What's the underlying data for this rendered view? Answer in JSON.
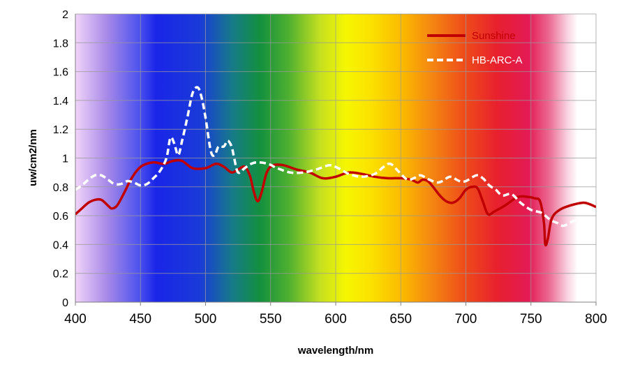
{
  "chart_data": {
    "type": "line",
    "title": "",
    "xlabel": "wavelength/nm",
    "ylabel": "uw/cm2/nm",
    "xlim": [
      400,
      800
    ],
    "ylim": [
      0,
      2
    ],
    "x_ticks": [
      "400",
      "450",
      "500",
      "550",
      "600",
      "650",
      "700",
      "750",
      "800"
    ],
    "y_ticks": [
      "0",
      "0.2",
      "0.4",
      "0.6",
      "0.8",
      "1",
      "1.2",
      "1.4",
      "1.6",
      "1.8",
      "2"
    ],
    "grid": true,
    "legend": "top-right",
    "background": "visible-spectrum color gradient from violet at 400 nm to red at 780 nm",
    "series": [
      {
        "name": "Sunshine",
        "color": "#c00000",
        "style": "solid",
        "points": [
          [
            400,
            0.61
          ],
          [
            405,
            0.65
          ],
          [
            410,
            0.69
          ],
          [
            415,
            0.71
          ],
          [
            420,
            0.71
          ],
          [
            425,
            0.67
          ],
          [
            428,
            0.65
          ],
          [
            432,
            0.67
          ],
          [
            437,
            0.75
          ],
          [
            442,
            0.84
          ],
          [
            447,
            0.91
          ],
          [
            452,
            0.95
          ],
          [
            460,
            0.97
          ],
          [
            468,
            0.96
          ],
          [
            475,
            0.98
          ],
          [
            482,
            0.98
          ],
          [
            490,
            0.93
          ],
          [
            500,
            0.93
          ],
          [
            508,
            0.96
          ],
          [
            514,
            0.94
          ],
          [
            520,
            0.9
          ],
          [
            525,
            0.92
          ],
          [
            530,
            0.94
          ],
          [
            534,
            0.88
          ],
          [
            537,
            0.77
          ],
          [
            540,
            0.7
          ],
          [
            543,
            0.76
          ],
          [
            547,
            0.9
          ],
          [
            552,
            0.95
          ],
          [
            560,
            0.95
          ],
          [
            570,
            0.92
          ],
          [
            580,
            0.9
          ],
          [
            590,
            0.86
          ],
          [
            600,
            0.87
          ],
          [
            610,
            0.9
          ],
          [
            620,
            0.89
          ],
          [
            630,
            0.87
          ],
          [
            640,
            0.86
          ],
          [
            650,
            0.86
          ],
          [
            658,
            0.85
          ],
          [
            663,
            0.83
          ],
          [
            667,
            0.85
          ],
          [
            672,
            0.83
          ],
          [
            680,
            0.74
          ],
          [
            685,
            0.7
          ],
          [
            690,
            0.69
          ],
          [
            695,
            0.72
          ],
          [
            700,
            0.78
          ],
          [
            705,
            0.8
          ],
          [
            709,
            0.79
          ],
          [
            713,
            0.7
          ],
          [
            717,
            0.61
          ],
          [
            722,
            0.63
          ],
          [
            730,
            0.67
          ],
          [
            740,
            0.73
          ],
          [
            748,
            0.73
          ],
          [
            753,
            0.72
          ],
          [
            757,
            0.7
          ],
          [
            760,
            0.55
          ],
          [
            761,
            0.4
          ],
          [
            763,
            0.44
          ],
          [
            766,
            0.58
          ],
          [
            772,
            0.64
          ],
          [
            780,
            0.67
          ],
          [
            790,
            0.69
          ],
          [
            795,
            0.68
          ],
          [
            800,
            0.66
          ]
        ]
      },
      {
        "name": "HB-ARC-A",
        "color": "#ffffff",
        "style": "dashed",
        "points": [
          [
            400,
            0.78
          ],
          [
            405,
            0.81
          ],
          [
            410,
            0.85
          ],
          [
            415,
            0.88
          ],
          [
            420,
            0.88
          ],
          [
            425,
            0.85
          ],
          [
            430,
            0.82
          ],
          [
            435,
            0.82
          ],
          [
            440,
            0.84
          ],
          [
            445,
            0.83
          ],
          [
            450,
            0.81
          ],
          [
            455,
            0.82
          ],
          [
            460,
            0.86
          ],
          [
            465,
            0.91
          ],
          [
            470,
            1.0
          ],
          [
            473,
            1.14
          ],
          [
            476,
            1.1
          ],
          [
            479,
            1.02
          ],
          [
            482,
            1.12
          ],
          [
            486,
            1.28
          ],
          [
            490,
            1.45
          ],
          [
            494,
            1.49
          ],
          [
            497,
            1.42
          ],
          [
            500,
            1.28
          ],
          [
            504,
            1.05
          ],
          [
            507,
            1.02
          ],
          [
            510,
            1.08
          ],
          [
            514,
            1.08
          ],
          [
            517,
            1.12
          ],
          [
            520,
            1.08
          ],
          [
            522,
            1.0
          ],
          [
            525,
            0.9
          ],
          [
            530,
            0.93
          ],
          [
            535,
            0.96
          ],
          [
            540,
            0.97
          ],
          [
            548,
            0.96
          ],
          [
            555,
            0.93
          ],
          [
            565,
            0.9
          ],
          [
            575,
            0.9
          ],
          [
            585,
            0.92
          ],
          [
            595,
            0.95
          ],
          [
            602,
            0.93
          ],
          [
            610,
            0.89
          ],
          [
            620,
            0.87
          ],
          [
            630,
            0.89
          ],
          [
            637,
            0.94
          ],
          [
            642,
            0.96
          ],
          [
            648,
            0.91
          ],
          [
            655,
            0.85
          ],
          [
            660,
            0.86
          ],
          [
            665,
            0.88
          ],
          [
            672,
            0.85
          ],
          [
            678,
            0.83
          ],
          [
            682,
            0.84
          ],
          [
            688,
            0.87
          ],
          [
            695,
            0.84
          ],
          [
            700,
            0.84
          ],
          [
            708,
            0.88
          ],
          [
            713,
            0.86
          ],
          [
            718,
            0.81
          ],
          [
            723,
            0.78
          ],
          [
            728,
            0.74
          ],
          [
            735,
            0.75
          ],
          [
            742,
            0.69
          ],
          [
            750,
            0.64
          ],
          [
            758,
            0.62
          ],
          [
            765,
            0.57
          ],
          [
            770,
            0.55
          ],
          [
            775,
            0.53
          ],
          [
            782,
            0.56
          ],
          [
            788,
            0.58
          ]
        ]
      }
    ]
  }
}
